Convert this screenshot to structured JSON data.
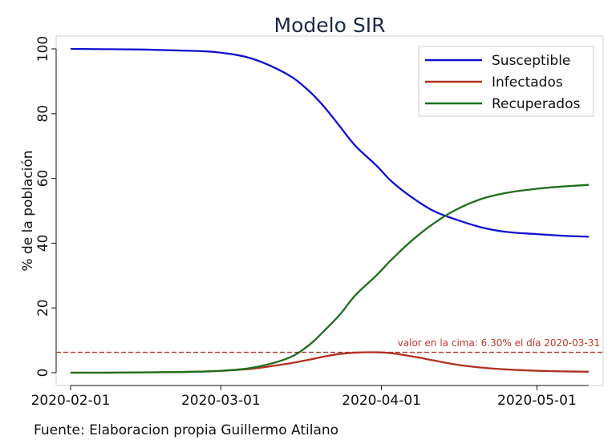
{
  "chart_data": {
    "type": "line",
    "title": "Modelo SIR",
    "xlabel": "",
    "ylabel": "% de la población",
    "source": "Fuente: Elaboracion propia Guillermo Atilano",
    "x_ticks": [
      "2020-02-01",
      "2020-03-01",
      "2020-04-01",
      "2020-05-01"
    ],
    "y_ticks": [
      "0",
      "20",
      "40",
      "60",
      "80",
      "100"
    ],
    "xlim": [
      "2020-02-01",
      "2020-05-11"
    ],
    "ylim": [
      0,
      100
    ],
    "x": [
      "2020-02-01",
      "2020-02-08",
      "2020-02-15",
      "2020-02-22",
      "2020-02-29",
      "2020-03-07",
      "2020-03-14",
      "2020-03-18",
      "2020-03-21",
      "2020-03-24",
      "2020-03-27",
      "2020-03-31",
      "2020-04-03",
      "2020-04-07",
      "2020-04-11",
      "2020-04-15",
      "2020-04-20",
      "2020-04-25",
      "2020-05-01",
      "2020-05-06",
      "2020-05-11"
    ],
    "series": [
      {
        "name": "Susceptible",
        "color": "#1010d0",
        "values": [
          100,
          99.9,
          99.8,
          99.5,
          99,
          97,
          92,
          87,
          82,
          76,
          70,
          64,
          59,
          54,
          50,
          47.5,
          45,
          43.5,
          42.8,
          42.3,
          42
        ]
      },
      {
        "name": "Infectados",
        "color": "#b03020",
        "values": [
          0,
          0,
          0.1,
          0.2,
          0.5,
          1.2,
          2.8,
          4.0,
          5.0,
          5.8,
          6.2,
          6.3,
          6.0,
          5.0,
          3.8,
          2.6,
          1.6,
          1.0,
          0.6,
          0.4,
          0.3
        ]
      },
      {
        "name": "Recuperados",
        "color": "#1e6e1a",
        "values": [
          0,
          0,
          0.1,
          0.2,
          0.5,
          1.5,
          4.5,
          8.5,
          13,
          18,
          24,
          30,
          35,
          41,
          46,
          50,
          53.5,
          55.5,
          56.8,
          57.5,
          58
        ]
      }
    ],
    "reference_line": {
      "value": 6.3,
      "color": "#b03020",
      "label": "valor en la cima: 6.30% el día 2020-03-31"
    },
    "legend_position": "top-right",
    "grid": false
  }
}
